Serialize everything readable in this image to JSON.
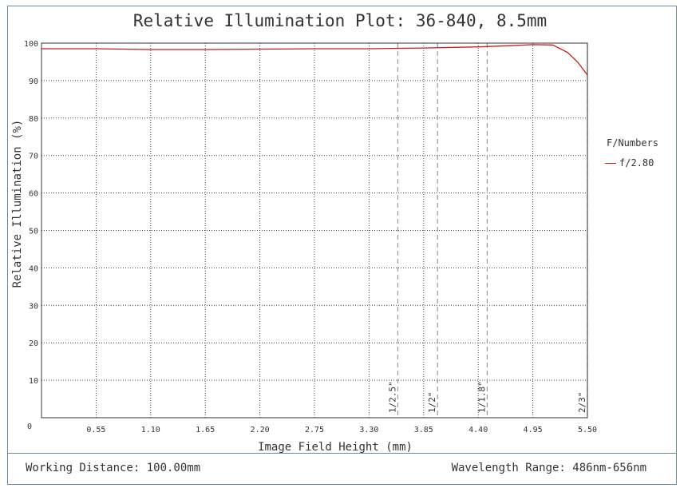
{
  "footer": {
    "working_distance": "Working Distance: 100.00mm",
    "wavelength_range": "Wavelength Range: 486nm-656nm"
  },
  "legend": {
    "title": "F/Numbers",
    "entries": [
      {
        "label": "f/2.80",
        "color": "#cc1b1b"
      }
    ]
  },
  "chart_data": {
    "type": "line",
    "title": "Relative Illumination Plot: 36-840, 8.5mm",
    "xlabel": "Image Field Height (mm)",
    "ylabel": "Relative Illumination (%)",
    "xlim": [
      0,
      5.5
    ],
    "ylim": [
      0,
      100
    ],
    "xticks": [
      0.55,
      1.1,
      1.65,
      2.2,
      2.75,
      3.3,
      3.85,
      4.4,
      4.95,
      5.5
    ],
    "xtick_labels": [
      "0.55",
      "1.10",
      "1.65",
      "2.20",
      "2.75",
      "3.30",
      "3.85",
      "4.40",
      "4.95",
      "5.50"
    ],
    "yticks": [
      10,
      20,
      30,
      40,
      50,
      60,
      70,
      80,
      90,
      100
    ],
    "ytick_labels": [
      "10",
      "20",
      "30",
      "40",
      "50",
      "60",
      "70",
      "80",
      "90",
      "100"
    ],
    "y_origin_label": "0",
    "grid": true,
    "series": [
      {
        "name": "f/2.80",
        "color": "#cc1b1b",
        "x": [
          0,
          0.55,
          1.1,
          1.65,
          2.2,
          2.75,
          3.3,
          3.85,
          4.4,
          4.7,
          4.95,
          5.15,
          5.3,
          5.4,
          5.5
        ],
        "y": [
          98.5,
          98.5,
          98.3,
          98.3,
          98.4,
          98.5,
          98.5,
          98.7,
          99.0,
          99.3,
          99.6,
          99.5,
          97.5,
          95.0,
          91.5
        ]
      }
    ],
    "sensor_markers": [
      {
        "label": "1/2.5\"",
        "x": 3.59
      },
      {
        "label": "1/2\"",
        "x": 3.99
      },
      {
        "label": "1/1.8\"",
        "x": 4.49
      },
      {
        "label": "2/3\"",
        "x": 5.5
      }
    ]
  }
}
